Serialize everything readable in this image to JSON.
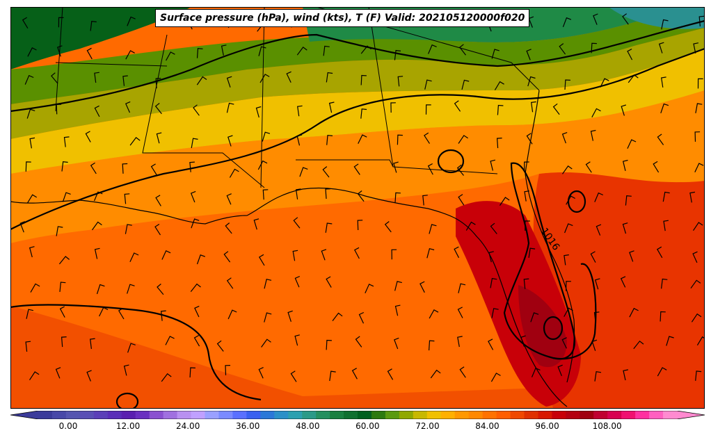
{
  "title": "Surface pressure (hPa), wind (kts), T (F) Valid: 202105120000f020",
  "isobar_labels": [
    "1016"
  ],
  "colorbar": {
    "ticks": [
      "0.00",
      "12.00",
      "24.00",
      "36.00",
      "48.00",
      "60.00",
      "72.00",
      "84.00",
      "96.00",
      "108.00"
    ],
    "tick_values": [
      0,
      12,
      24,
      36,
      48,
      60,
      72,
      84,
      96,
      108
    ],
    "min": -6,
    "max": 122,
    "colors": [
      "#3b3b9a",
      "#4848a8",
      "#5555b0",
      "#5a4fb5",
      "#5b3fb8",
      "#5a2db8",
      "#5a1fb0",
      "#6a2fc0",
      "#8a50d0",
      "#a070e0",
      "#b890f0",
      "#c0a0ff",
      "#9aa0ff",
      "#7a8aff",
      "#5a70ff",
      "#3a60f0",
      "#2a78d8",
      "#2a90c8",
      "#2aa0b0",
      "#2a9a88",
      "#249060",
      "#1a8040",
      "#107030",
      "#006020",
      "#2c7a10",
      "#5a9a10",
      "#90a800",
      "#c8b800",
      "#f0c000",
      "#ffb000",
      "#ff9800",
      "#ff8800",
      "#ff7200",
      "#ff5e00",
      "#f04800",
      "#e03000",
      "#d81800",
      "#c80008",
      "#b40010",
      "#a00010",
      "#c00030",
      "#d80050",
      "#f01070",
      "#ff30a0",
      "#ff60c0",
      "#ff8ad0"
    ]
  },
  "colors": {
    "coast": "#000000",
    "isobar": "#000000",
    "background": "#ffffff"
  }
}
